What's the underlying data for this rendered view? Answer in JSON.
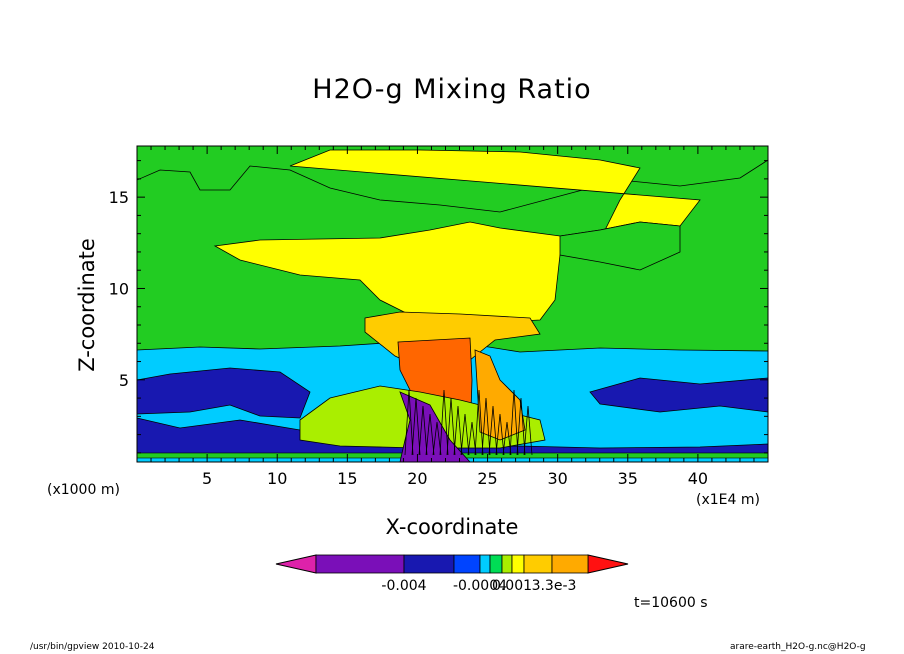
{
  "chart_data": {
    "type": "heatmap",
    "title": "H2O-g Mixing Ratio",
    "xlabel": "X-coordinate",
    "ylabel": "Z-coordinate",
    "x_unit_label": "(x1000 m)",
    "x_unit_label_secondary": "(x1E4 m)",
    "xlim": [
      0,
      45
    ],
    "ylim": [
      0.5,
      17.8
    ],
    "x_ticks": [
      5,
      10,
      15,
      20,
      25,
      30,
      35,
      40
    ],
    "y_ticks": [
      5,
      10,
      15
    ],
    "colorbar": {
      "colors": [
        "#dd22aa",
        "#7a0fb8",
        "#1818b0",
        "#0044ff",
        "#00ccff",
        "#00dd55",
        "#aaee00",
        "#ffff00",
        "#ffcc00",
        "#ffaa00",
        "#ff6600",
        "#ff1111"
      ],
      "tick_labels": [
        "-0.004",
        "-0.0004",
        "0.001",
        "3.3e-3"
      ]
    },
    "background_value_color": "#22cc22",
    "time_label": "t=10600 s"
  },
  "footer": {
    "left": "/usr/bin/gpview   2010-10-24",
    "right": "arare-earth_H2O-g.nc@H2O-g"
  }
}
